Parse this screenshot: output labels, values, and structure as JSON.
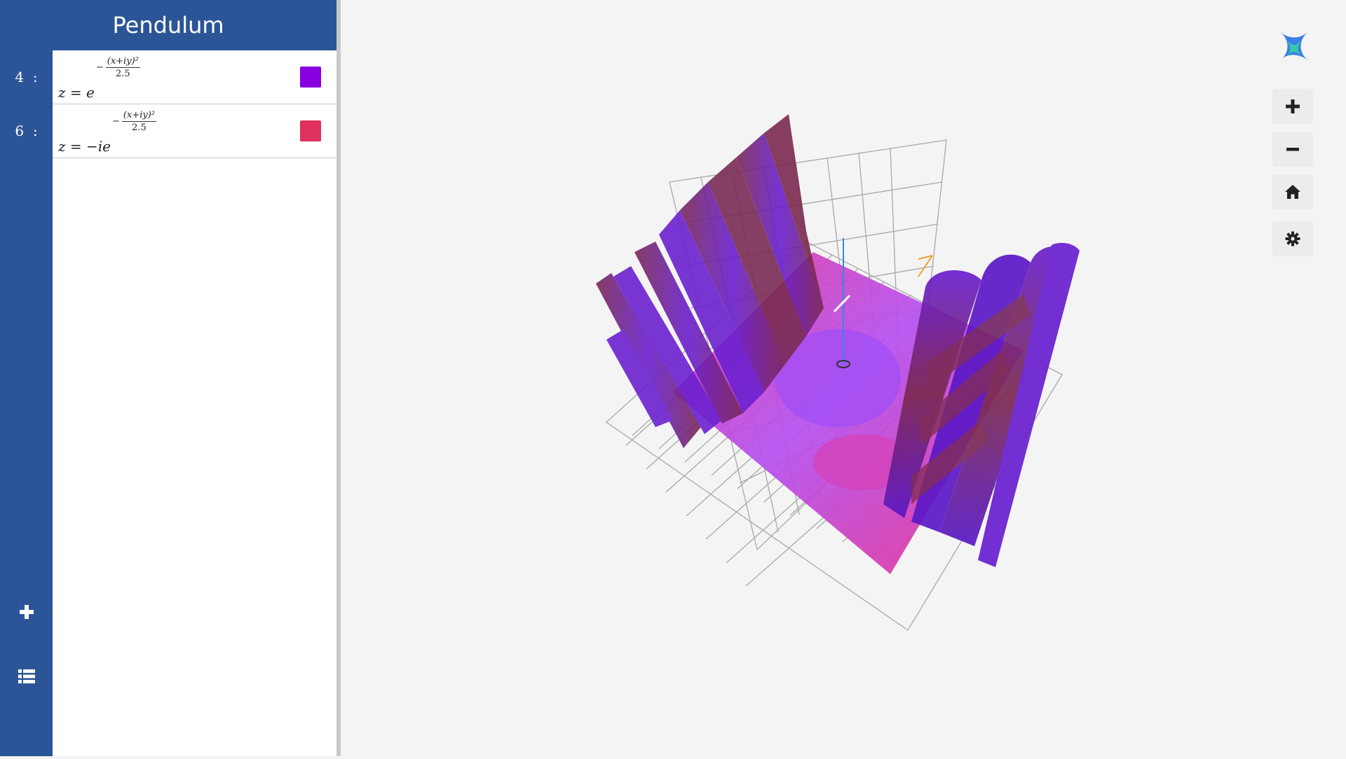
{
  "app": {
    "title": "Pendulum"
  },
  "equations": [
    {
      "index": "4",
      "sep": ":",
      "lhs": "z =",
      "base": "e",
      "exp_prefix": "−",
      "exp_num": "(x+iy)²",
      "exp_den": "2.5",
      "color": "#8800e0"
    },
    {
      "index": "6",
      "sep": ":",
      "lhs": "z =",
      "base": "−ie",
      "exp_prefix": "−",
      "exp_num": "(x+iy)²",
      "exp_den": "2.5",
      "color": "#e0305e"
    }
  ],
  "rail": {
    "add_icon": "plus-icon",
    "list_icon": "list-icon"
  },
  "toolbar": {
    "icons": [
      "zoom-in-icon",
      "zoom-out-icon",
      "home-icon",
      "gear-icon"
    ]
  },
  "colors": {
    "header_bg": "#2b5597",
    "surface_purple": "#7a1fe0",
    "surface_pink": "#e0308a",
    "surface_maroon": "#7a2a4a"
  }
}
